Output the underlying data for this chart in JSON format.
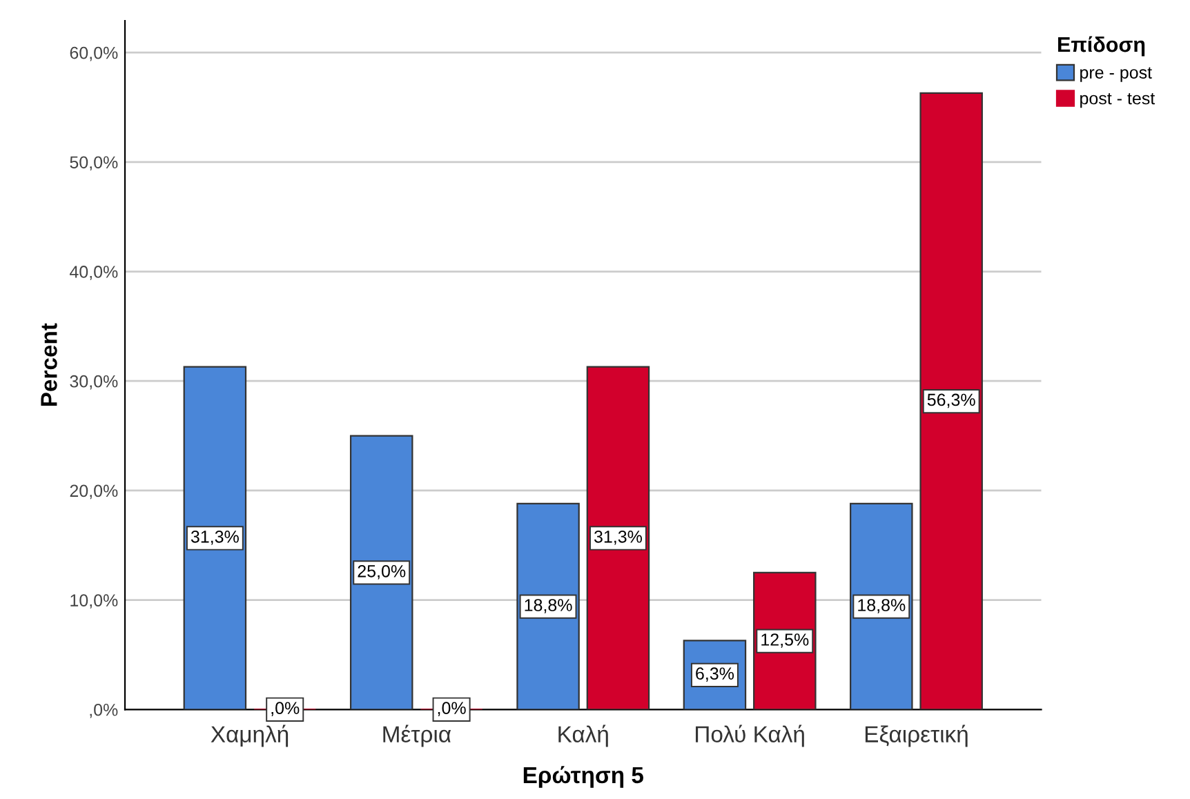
{
  "chart_data": {
    "type": "bar",
    "xlabel": "Ερώτηση 5",
    "ylabel": "Percent",
    "legend_title": "Επίδοση",
    "categories": [
      "Χαμηλή",
      "Μέτρια",
      "Καλή",
      "Πολύ Καλή",
      "Εξαιρετική"
    ],
    "series": [
      {
        "name": "pre - post",
        "color": "#4a86d8",
        "values": [
          31.3,
          25.0,
          18.8,
          6.3,
          18.8
        ],
        "value_labels": [
          "31,3%",
          "25,0%",
          "18,8%",
          "6,3%",
          "18,8%"
        ]
      },
      {
        "name": "post - test",
        "color": "#d2002c",
        "values": [
          0,
          0,
          31.3,
          12.5,
          56.3
        ],
        "value_labels": [
          ",0%",
          ",0%",
          "31,3%",
          "12,5%",
          "56,3%"
        ]
      }
    ],
    "ylim": [
      0,
      62.9
    ],
    "yticks": [
      {
        "value": 0,
        "label": ",0%"
      },
      {
        "value": 10,
        "label": "10,0%"
      },
      {
        "value": 20,
        "label": "20,0%"
      },
      {
        "value": 30,
        "label": "30,0%"
      },
      {
        "value": 40,
        "label": "40,0%"
      },
      {
        "value": 50,
        "label": "50,0%"
      },
      {
        "value": 60,
        "label": "60,0%"
      }
    ],
    "grid": "y",
    "legend": "top right"
  }
}
